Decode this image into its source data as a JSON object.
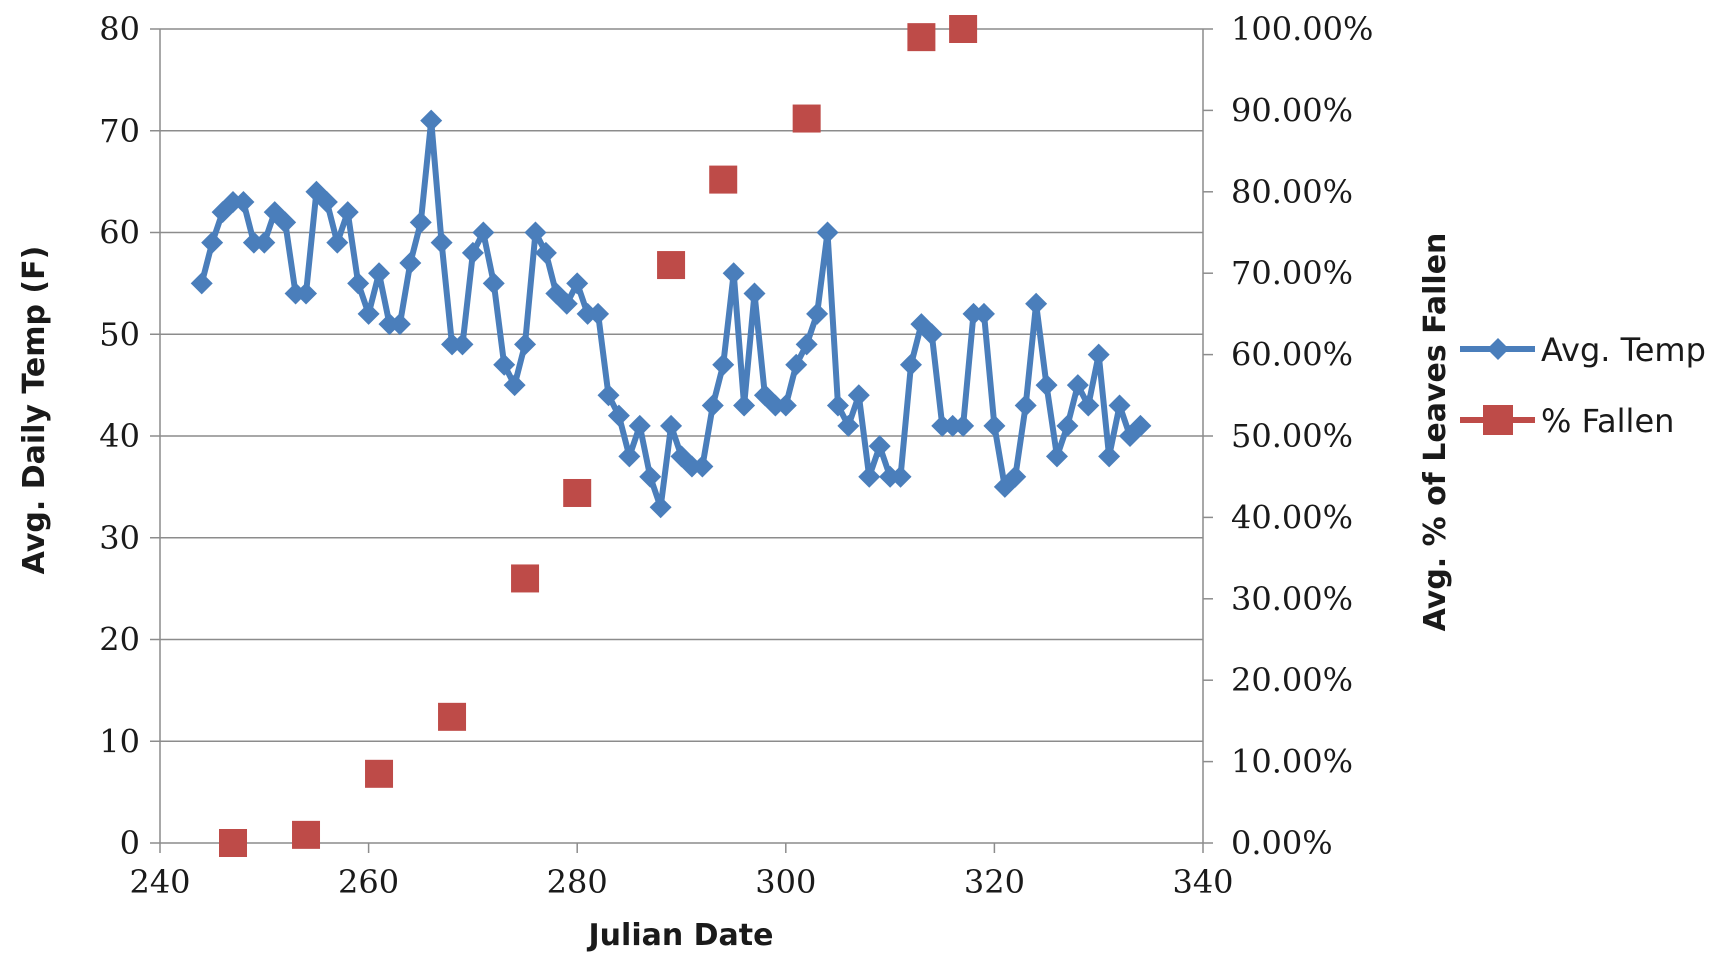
{
  "chart_data": {
    "type": "line",
    "xlabel": "Julian Date",
    "ylabel": "Avg. Daily Temp (F)",
    "y2label": "Avg. % of Leaves Fallen",
    "xlim": [
      240,
      340
    ],
    "ylim": [
      0,
      80
    ],
    "y2lim": [
      0,
      100
    ],
    "x_ticks": [
      "240",
      "260",
      "280",
      "300",
      "320",
      "340"
    ],
    "y_ticks": [
      "0",
      "10",
      "20",
      "30",
      "40",
      "50",
      "60",
      "70",
      "80"
    ],
    "y2_ticks": [
      "0.00%",
      "10.00%",
      "20.00%",
      "30.00%",
      "40.00%",
      "50.00%",
      "60.00%",
      "70.00%",
      "80.00%",
      "90.00%",
      "100.00%"
    ],
    "grid": "horizontal",
    "legend_position": "right",
    "series": [
      {
        "name": "Avg. Temp",
        "axis": "left",
        "style": "line-diamond",
        "color": "#4a7ebb",
        "x": [
          244,
          245,
          246,
          247,
          248,
          249,
          250,
          251,
          252,
          253,
          254,
          255,
          256,
          257,
          258,
          259,
          260,
          261,
          262,
          263,
          264,
          265,
          266,
          267,
          268,
          269,
          270,
          271,
          272,
          273,
          274,
          275,
          276,
          277,
          278,
          279,
          280,
          281,
          282,
          283,
          284,
          285,
          286,
          287,
          288,
          289,
          290,
          291,
          292,
          293,
          294,
          295,
          296,
          297,
          298,
          299,
          300,
          301,
          302,
          303,
          304,
          305,
          306,
          307,
          308,
          309,
          310,
          311,
          312,
          313,
          314,
          315,
          316,
          317,
          318,
          319,
          320,
          321,
          322,
          323,
          324,
          325,
          326,
          327,
          328,
          329,
          330,
          331,
          332,
          333,
          334
        ],
        "y": [
          55,
          59,
          62,
          63,
          63,
          59,
          59,
          62,
          61,
          54,
          54,
          64,
          63,
          59,
          62,
          55,
          52,
          56,
          51,
          51,
          57,
          61,
          71,
          59,
          49,
          49,
          58,
          60,
          55,
          47,
          45,
          49,
          60,
          58,
          54,
          53,
          55,
          52,
          52,
          44,
          42,
          38,
          41,
          36,
          33,
          41,
          38,
          37,
          37,
          43,
          47,
          56,
          43,
          54,
          44,
          43,
          43,
          47,
          49,
          52,
          60,
          43,
          41,
          44,
          36,
          39,
          36,
          36,
          47,
          51,
          50,
          41,
          41,
          41,
          52,
          52,
          41,
          35,
          36,
          43,
          53,
          45,
          38,
          41,
          45,
          43,
          48,
          38,
          43,
          40,
          41
        ]
      },
      {
        "name": "% Fallen",
        "axis": "right",
        "style": "marker-square",
        "color": "#be4b48",
        "x": [
          247,
          254,
          261,
          268,
          275,
          280,
          289,
          294,
          302,
          313,
          317
        ],
        "y": [
          0,
          1,
          8.5,
          15.5,
          32.5,
          43,
          71,
          81.5,
          89,
          99,
          100
        ]
      }
    ]
  }
}
